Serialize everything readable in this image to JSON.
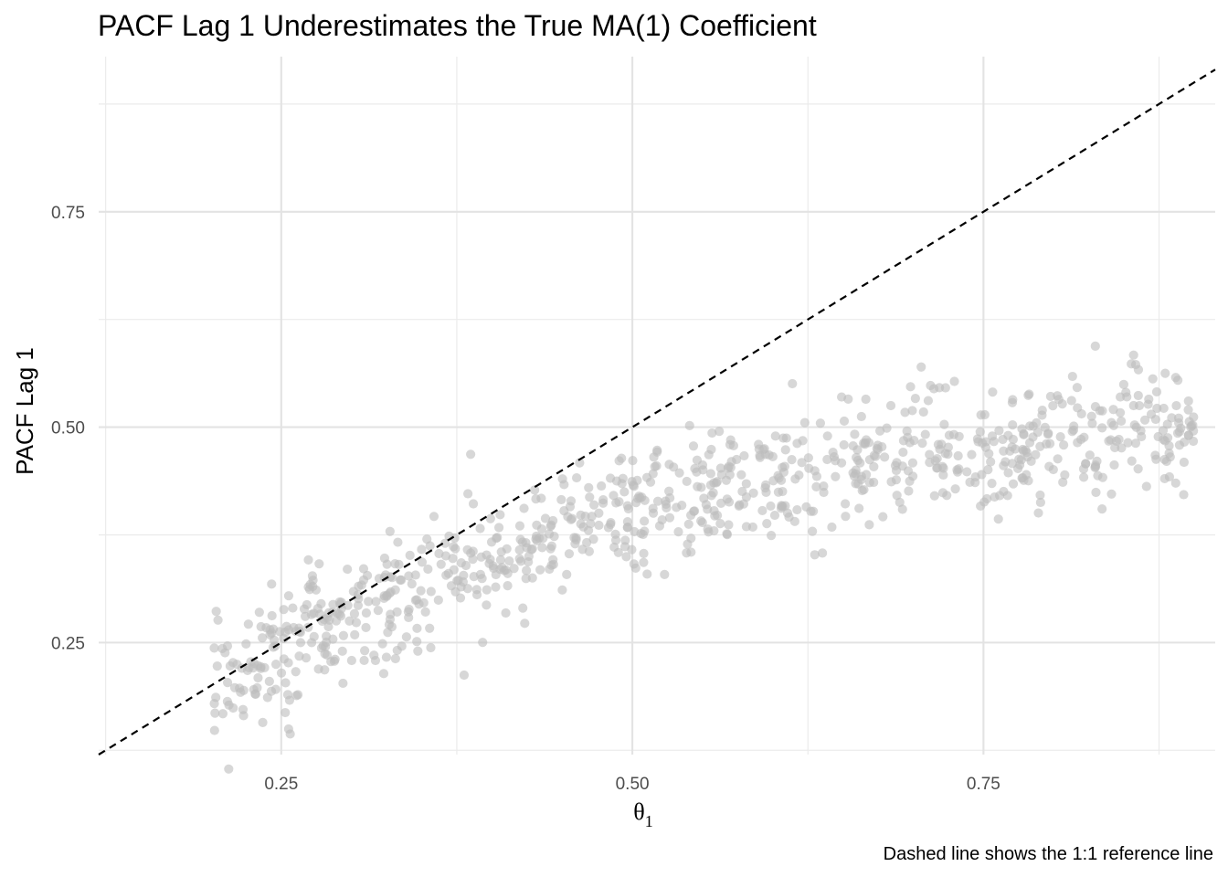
{
  "chart_data": {
    "type": "scatter",
    "title": "PACF Lag 1 Underestimates the True MA(1) Coefficient",
    "xlabel": "θ1",
    "ylabel": "PACF Lag 1",
    "caption": "Dashed line shows the 1:1 reference line",
    "xlim": [
      0.12,
      0.915
    ],
    "ylim": [
      0.12,
      0.93
    ],
    "x_major_ticks": [
      0.25,
      0.5,
      0.75
    ],
    "x_minor_ticks": [
      0.125,
      0.375,
      0.625,
      0.875
    ],
    "y_major_ticks": [
      0.25,
      0.5,
      0.75
    ],
    "y_minor_ticks": [
      0.125,
      0.375,
      0.625,
      0.875
    ],
    "x_tick_labels": [
      "0.25",
      "0.50",
      "0.75"
    ],
    "y_tick_labels": [
      "0.25",
      "0.50",
      "0.75"
    ],
    "grid": "on",
    "reference_line": {
      "style": "dashed",
      "slope": 1,
      "intercept": 0,
      "color": "#000000"
    },
    "points": {
      "color": "#bdbdbd",
      "count": 900,
      "trend": "PACF lag 1 approximately equals theta/(1+theta^2) plus noise",
      "x_range": [
        0.2,
        0.9
      ],
      "noise_sd": 0.038,
      "x": [
        0.2,
        0.21,
        0.22,
        0.23,
        0.24,
        0.25,
        0.26,
        0.27,
        0.28,
        0.29,
        0.3,
        0.31,
        0.32,
        0.33,
        0.34,
        0.35,
        0.36,
        0.37,
        0.38,
        0.39,
        0.4,
        0.41,
        0.42,
        0.43,
        0.44,
        0.45,
        0.46,
        0.47,
        0.48,
        0.49,
        0.5,
        0.51,
        0.52,
        0.53,
        0.54,
        0.55,
        0.56,
        0.57,
        0.58,
        0.59,
        0.6,
        0.61,
        0.62,
        0.63,
        0.64,
        0.65,
        0.66,
        0.67,
        0.68,
        0.69,
        0.7,
        0.71,
        0.72,
        0.73,
        0.74,
        0.75,
        0.76,
        0.77,
        0.78,
        0.79,
        0.8,
        0.81,
        0.82,
        0.83,
        0.84,
        0.85,
        0.86,
        0.87,
        0.88,
        0.89,
        0.9
      ],
      "y": [
        0.19,
        0.2,
        0.21,
        0.22,
        0.23,
        0.24,
        0.25,
        0.26,
        0.27,
        0.28,
        0.28,
        0.29,
        0.3,
        0.31,
        0.31,
        0.32,
        0.33,
        0.34,
        0.34,
        0.35,
        0.36,
        0.36,
        0.37,
        0.38,
        0.38,
        0.39,
        0.39,
        0.4,
        0.4,
        0.41,
        0.41,
        0.42,
        0.42,
        0.43,
        0.43,
        0.43,
        0.44,
        0.44,
        0.44,
        0.45,
        0.45,
        0.45,
        0.45,
        0.46,
        0.46,
        0.46,
        0.46,
        0.47,
        0.47,
        0.47,
        0.47,
        0.47,
        0.47,
        0.48,
        0.48,
        0.48,
        0.48,
        0.48,
        0.48,
        0.48,
        0.48,
        0.49,
        0.49,
        0.49,
        0.49,
        0.49,
        0.49,
        0.49,
        0.49,
        0.49,
        0.49
      ]
    }
  }
}
